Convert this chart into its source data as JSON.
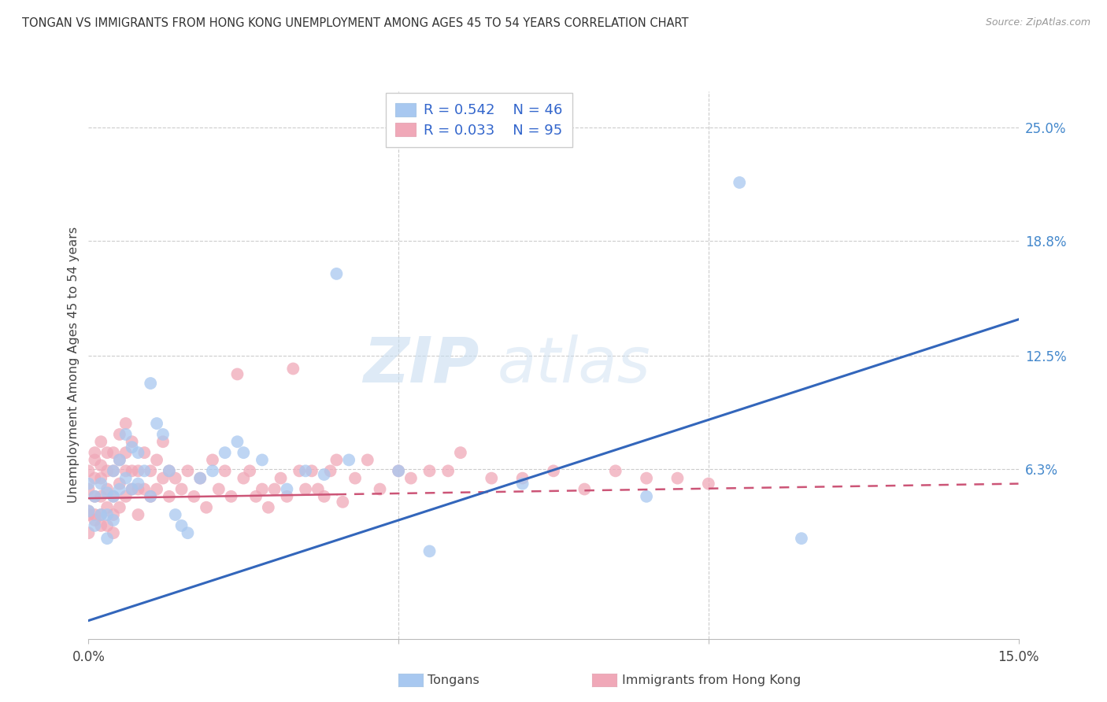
{
  "title": "TONGAN VS IMMIGRANTS FROM HONG KONG UNEMPLOYMENT AMONG AGES 45 TO 54 YEARS CORRELATION CHART",
  "source": "Source: ZipAtlas.com",
  "ylabel": "Unemployment Among Ages 45 to 54 years",
  "x_min": 0.0,
  "x_max": 0.15,
  "y_min": -0.03,
  "y_max": 0.27,
  "x_ticks": [
    0.0,
    0.05,
    0.1,
    0.15
  ],
  "x_tick_labels": [
    "0.0%",
    "",
    "",
    "15.0%"
  ],
  "y_ticks_right": [
    0.25,
    0.188,
    0.125,
    0.063
  ],
  "y_tick_labels_right": [
    "25.0%",
    "18.8%",
    "12.5%",
    "6.3%"
  ],
  "tongan_R": "0.542",
  "tongan_N": "46",
  "hk_R": "0.033",
  "hk_N": "95",
  "tongan_color": "#a8c8f0",
  "hk_color": "#f0a8b8",
  "tongan_line_color": "#3366bb",
  "hk_line_color": "#cc5577",
  "legend_label_1": "Tongans",
  "legend_label_2": "Immigrants from Hong Kong",
  "watermark_zip": "ZIP",
  "watermark_atlas": "atlas",
  "tongan_x": [
    0.0,
    0.0,
    0.001,
    0.001,
    0.002,
    0.002,
    0.003,
    0.003,
    0.003,
    0.004,
    0.004,
    0.004,
    0.005,
    0.005,
    0.006,
    0.006,
    0.007,
    0.007,
    0.008,
    0.008,
    0.009,
    0.01,
    0.01,
    0.011,
    0.012,
    0.013,
    0.014,
    0.015,
    0.016,
    0.018,
    0.02,
    0.022,
    0.024,
    0.025,
    0.028,
    0.032,
    0.035,
    0.038,
    0.04,
    0.042,
    0.05,
    0.055,
    0.07,
    0.09,
    0.105,
    0.115
  ],
  "tongan_y": [
    0.04,
    0.055,
    0.048,
    0.032,
    0.055,
    0.038,
    0.05,
    0.038,
    0.025,
    0.062,
    0.048,
    0.035,
    0.068,
    0.052,
    0.082,
    0.058,
    0.075,
    0.052,
    0.072,
    0.055,
    0.062,
    0.11,
    0.048,
    0.088,
    0.082,
    0.062,
    0.038,
    0.032,
    0.028,
    0.058,
    0.062,
    0.072,
    0.078,
    0.072,
    0.068,
    0.052,
    0.062,
    0.06,
    0.17,
    0.068,
    0.062,
    0.018,
    0.055,
    0.048,
    0.22,
    0.025
  ],
  "hk_x": [
    0.0,
    0.0,
    0.0,
    0.0,
    0.0,
    0.001,
    0.001,
    0.001,
    0.001,
    0.001,
    0.001,
    0.002,
    0.002,
    0.002,
    0.002,
    0.002,
    0.002,
    0.003,
    0.003,
    0.003,
    0.003,
    0.003,
    0.004,
    0.004,
    0.004,
    0.004,
    0.004,
    0.005,
    0.005,
    0.005,
    0.005,
    0.006,
    0.006,
    0.006,
    0.006,
    0.007,
    0.007,
    0.007,
    0.008,
    0.008,
    0.008,
    0.009,
    0.009,
    0.01,
    0.01,
    0.011,
    0.011,
    0.012,
    0.012,
    0.013,
    0.013,
    0.014,
    0.015,
    0.016,
    0.017,
    0.018,
    0.019,
    0.02,
    0.021,
    0.022,
    0.023,
    0.024,
    0.025,
    0.026,
    0.027,
    0.028,
    0.029,
    0.03,
    0.031,
    0.032,
    0.033,
    0.034,
    0.035,
    0.036,
    0.037,
    0.038,
    0.039,
    0.04,
    0.041,
    0.043,
    0.045,
    0.047,
    0.05,
    0.052,
    0.055,
    0.058,
    0.06,
    0.065,
    0.07,
    0.075,
    0.08,
    0.085,
    0.09,
    0.095,
    0.1
  ],
  "hk_y": [
    0.04,
    0.052,
    0.028,
    0.062,
    0.038,
    0.068,
    0.038,
    0.058,
    0.048,
    0.035,
    0.072,
    0.078,
    0.058,
    0.048,
    0.038,
    0.065,
    0.032,
    0.062,
    0.052,
    0.042,
    0.032,
    0.072,
    0.072,
    0.062,
    0.048,
    0.038,
    0.028,
    0.082,
    0.068,
    0.055,
    0.042,
    0.088,
    0.072,
    0.062,
    0.048,
    0.078,
    0.062,
    0.052,
    0.062,
    0.052,
    0.038,
    0.072,
    0.052,
    0.062,
    0.048,
    0.068,
    0.052,
    0.078,
    0.058,
    0.062,
    0.048,
    0.058,
    0.052,
    0.062,
    0.048,
    0.058,
    0.042,
    0.068,
    0.052,
    0.062,
    0.048,
    0.115,
    0.058,
    0.062,
    0.048,
    0.052,
    0.042,
    0.052,
    0.058,
    0.048,
    0.118,
    0.062,
    0.052,
    0.062,
    0.052,
    0.048,
    0.062,
    0.068,
    0.045,
    0.058,
    0.068,
    0.052,
    0.062,
    0.058,
    0.062,
    0.062,
    0.072,
    0.058,
    0.058,
    0.062,
    0.052,
    0.062,
    0.058,
    0.058,
    0.055
  ]
}
